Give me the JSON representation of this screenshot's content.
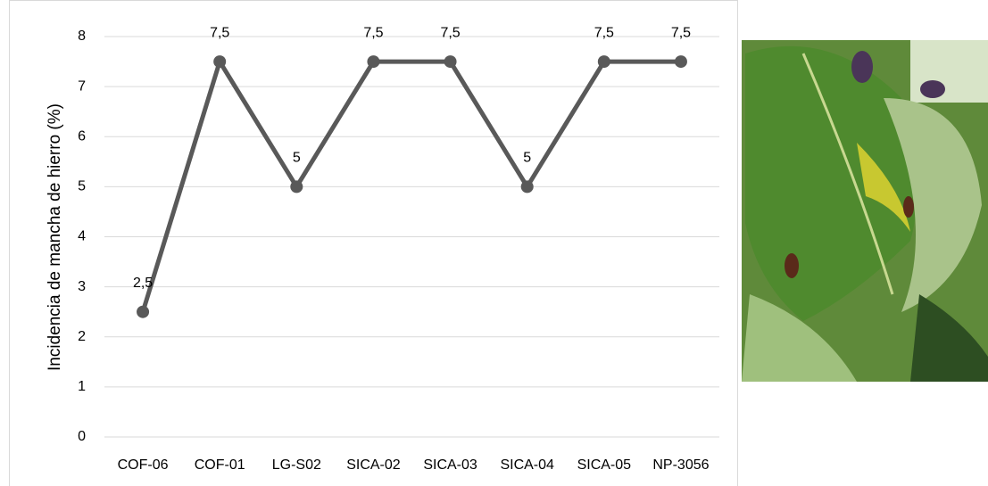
{
  "chart_data": {
    "type": "line",
    "ylabel": "Incidencia de mancha de hierro (%)",
    "categories": [
      "COF-06",
      "COF-01",
      "LG-S02",
      "SICA-02",
      "SICA-03",
      "SICA-04",
      "SICA-05",
      "NP-3056"
    ],
    "values": [
      2.5,
      7.5,
      5,
      7.5,
      7.5,
      5,
      7.5,
      7.5
    ],
    "value_labels": [
      "2,5",
      "7,5",
      "5",
      "7,5",
      "7,5",
      "5",
      "7,5",
      "7,5"
    ],
    "color": "#595959",
    "ylim": [
      0,
      8
    ],
    "yticks": [
      0,
      1,
      2,
      3,
      4,
      5,
      6,
      7,
      8
    ],
    "grid": true
  }
}
